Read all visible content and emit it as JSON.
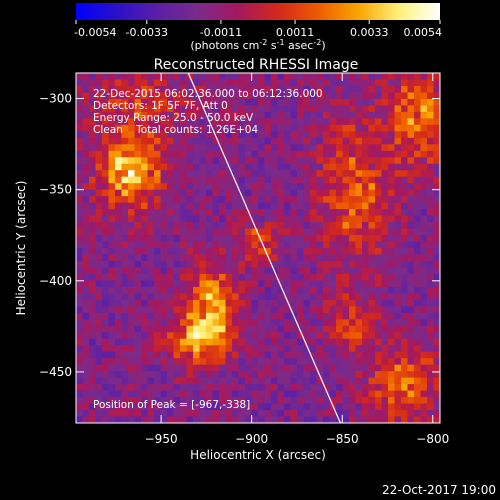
{
  "colorbar": {
    "ticks": [
      "-0.0054",
      "-0.0033",
      "-0.0011",
      "0.0011",
      "0.0033",
      "0.0054"
    ],
    "unit_main": "(photons cm",
    "unit_sup1": "-2",
    "unit_mid": " s",
    "unit_sup2": "-1",
    "unit_end": " asec",
    "unit_sup3": "-2",
    "unit_close": ")",
    "range": [
      -0.0054,
      0.0054
    ]
  },
  "info": {
    "time": "22-Dec-2015 06:02:36.000 to 06:12:36.000",
    "detectors": "Detectors: 1F 5F 7F, Att 0",
    "energy": "Energy Range: 25.0 - 50.0 keV",
    "clean": "Clean    Total counts: 1.26E+04",
    "peak": "Position of Peak = [-967,-338]"
  },
  "footer": {
    "date": "22-Oct-2017 19:00"
  },
  "chart_data": {
    "type": "heatmap",
    "title": "Reconstructed RHESSI Image",
    "xlabel": "Heliocentric X (arcsec)",
    "ylabel": "Heliocentric Y (arcsec)",
    "xlim": [
      -997,
      -796
    ],
    "ylim": [
      -478,
      -286
    ],
    "xticks": [
      -950,
      -900,
      -850,
      -800
    ],
    "yticks": [
      -300,
      -350,
      -400,
      -450
    ],
    "xtick_labels": [
      "−950",
      "−900",
      "−850",
      "−800"
    ],
    "ytick_labels": [
      "−300",
      "−350",
      "−400",
      "−450"
    ],
    "colormap": [
      "#0000ff",
      "#2a10c8",
      "#5a1fa6",
      "#7a2b8c",
      "#a5185f",
      "#d3281c",
      "#ee5c00",
      "#f9a700",
      "#fff27a",
      "#ffffff"
    ],
    "sources": [
      {
        "x": -967,
        "y": -338,
        "amp": 0.0054,
        "sx": 13,
        "sy": 16
      },
      {
        "x": -930,
        "y": -432,
        "amp": 0.004,
        "sx": 12,
        "sy": 10
      },
      {
        "x": -922,
        "y": -411,
        "amp": 0.0045,
        "sx": 9,
        "sy": 15
      },
      {
        "x": -895,
        "y": -380,
        "amp": 0.0035,
        "sx": 8,
        "sy": 7
      },
      {
        "x": -843,
        "y": -350,
        "amp": 0.0032,
        "sx": 14,
        "sy": 28
      },
      {
        "x": -807,
        "y": -310,
        "amp": 0.0038,
        "sx": 12,
        "sy": 18
      },
      {
        "x": -816,
        "y": -456,
        "amp": 0.0035,
        "sx": 14,
        "sy": 14
      },
      {
        "x": -845,
        "y": -425,
        "amp": 0.0025,
        "sx": 10,
        "sy": 12
      },
      {
        "x": -960,
        "y": -300,
        "amp": 0.002,
        "sx": 20,
        "sy": 10
      }
    ],
    "lines": [
      {
        "from": [
          -935,
          -286
        ],
        "to": [
          -851,
          -478
        ]
      }
    ]
  }
}
